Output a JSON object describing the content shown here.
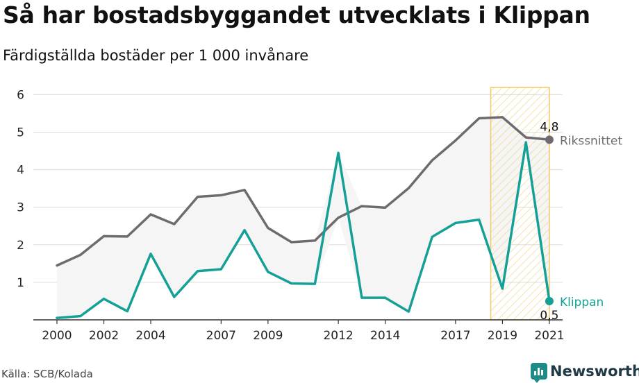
{
  "title": "Så har bostadsbyggandet utvecklats i Klippan",
  "subtitle": "Färdigställda bostäder per 1 000 invånare",
  "source": "Källa: SCB/Kolada",
  "brand": "Newsworthy",
  "colors": {
    "riket": "#6d6b70",
    "klippan": "#14a096",
    "highlight": "#f2c96d",
    "band": "#f5f5f5",
    "grid": "#dcdcdc"
  },
  "chart_data": {
    "type": "line",
    "x": [
      2000,
      2001,
      2002,
      2003,
      2004,
      2005,
      2006,
      2007,
      2008,
      2009,
      2010,
      2011,
      2012,
      2013,
      2014,
      2015,
      2016,
      2017,
      2018,
      2019,
      2020,
      2021
    ],
    "xticks": [
      2000,
      2002,
      2004,
      2007,
      2009,
      2012,
      2014,
      2017,
      2019,
      2021
    ],
    "yticks": [
      1,
      2,
      3,
      4,
      5,
      6
    ],
    "ylim": [
      0,
      6.2
    ],
    "xlim": [
      1999.5,
      2021.5
    ],
    "grid": true,
    "highlight_range": [
      2018.5,
      2021
    ],
    "series": [
      {
        "key": "riket",
        "name": "Rikssnittet",
        "values": [
          1.45,
          1.73,
          2.23,
          2.22,
          2.81,
          2.55,
          3.28,
          3.32,
          3.46,
          2.45,
          2.07,
          2.11,
          2.72,
          3.03,
          2.99,
          3.51,
          4.25,
          4.78,
          5.37,
          5.4,
          4.86,
          4.8
        ],
        "end_label": "4,8"
      },
      {
        "key": "klippan",
        "name": "Klippan",
        "values": [
          0.05,
          0.1,
          0.56,
          0.23,
          1.76,
          0.61,
          1.3,
          1.35,
          2.39,
          1.28,
          0.97,
          0.96,
          4.45,
          0.59,
          0.59,
          0.22,
          2.21,
          2.58,
          2.67,
          0.83,
          4.73,
          0.5
        ],
        "end_label": "0,5"
      }
    ]
  }
}
